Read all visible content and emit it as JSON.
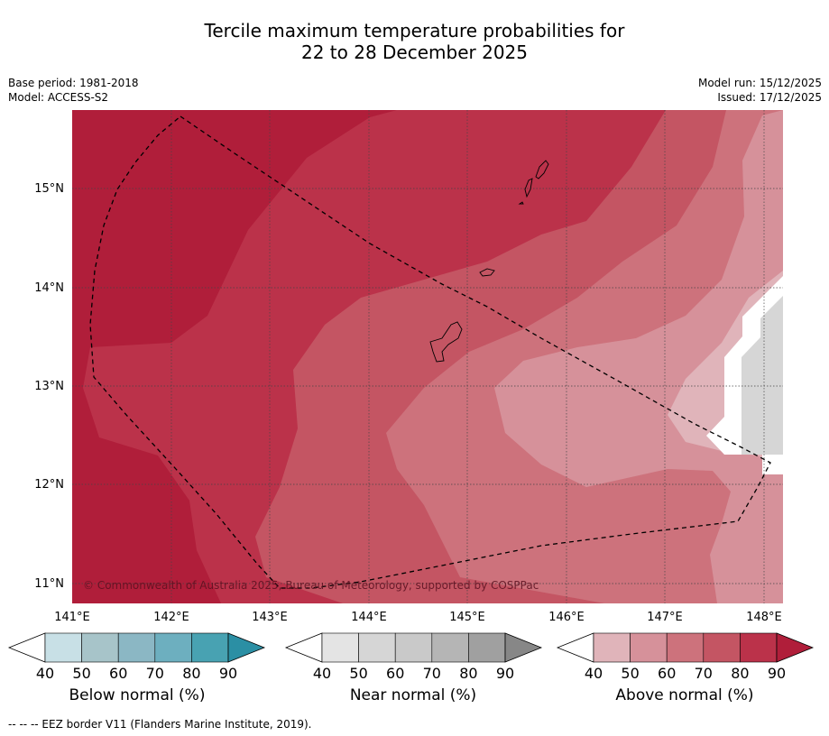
{
  "title": {
    "line1": "Tercile maximum temperature probabilities for",
    "line2": "22 to 28 December 2025"
  },
  "meta": {
    "base_period": "Base period: 1981-2018",
    "model": "Model: ACCESS-S2",
    "model_run": "Model run: 15/12/2025",
    "issued": "Issued: 17/12/2025"
  },
  "map": {
    "lon_ticks": [
      "141°E",
      "142°E",
      "143°E",
      "144°E",
      "145°E",
      "146°E",
      "147°E",
      "148°E"
    ],
    "lat_ticks": [
      "15°N",
      "14°N",
      "13°N",
      "12°N",
      "11°N"
    ],
    "lon_range": [
      140.9,
      148.1
    ],
    "lat_range": [
      10.8,
      15.8
    ],
    "copyright": "© Commonwealth of Australia 2025, Bureau of Meteorology, supported by COSPPac",
    "island_labels": []
  },
  "colorbars": [
    {
      "name": "below-normal",
      "title": "Below normal (%)",
      "ticks": [
        "40",
        "50",
        "60",
        "70",
        "80",
        "90"
      ],
      "colors": [
        "#ffffff",
        "#c8e0e6",
        "#a7c4c9",
        "#8bb7c4",
        "#6dafbf",
        "#48a2b2",
        "#2b8fa4"
      ]
    },
    {
      "name": "near-normal",
      "title": "Near normal (%)",
      "ticks": [
        "40",
        "50",
        "60",
        "70",
        "80",
        "90"
      ],
      "colors": [
        "#ffffff",
        "#e4e4e4",
        "#d6d6d6",
        "#c9c9c9",
        "#b5b5b5",
        "#a0a0a0",
        "#878787"
      ]
    },
    {
      "name": "above-normal",
      "title": "Above normal (%)",
      "ticks": [
        "40",
        "50",
        "60",
        "70",
        "80",
        "90"
      ],
      "colors": [
        "#ffffff",
        "#e0b4ba",
        "#d6919a",
        "#cd727c",
        "#c45563",
        "#bb324a",
        "#b01e3a"
      ]
    }
  ],
  "footnote": "--  --  -- EEZ border V11 (Flanders Marine Institute, 2019)."
}
